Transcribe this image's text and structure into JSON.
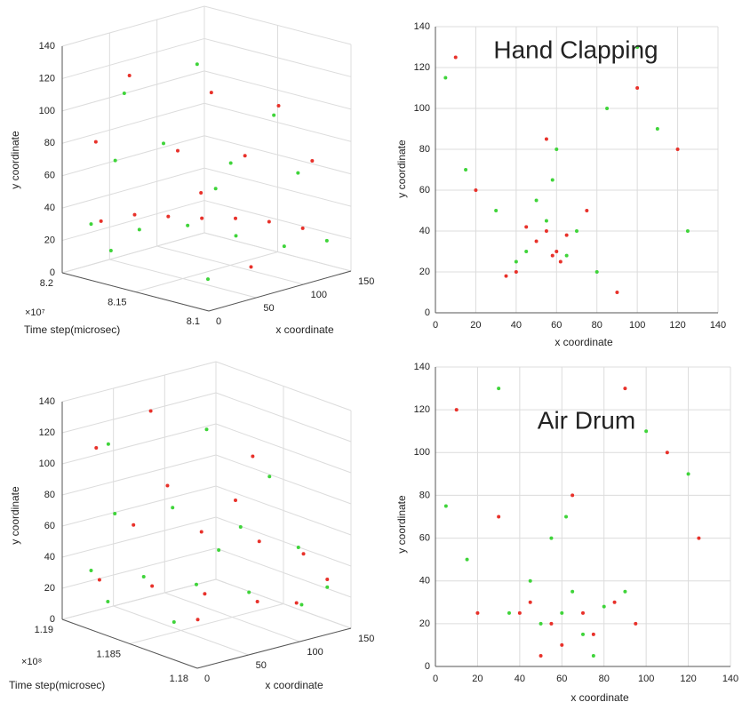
{
  "chart_data": [
    {
      "type": "scatter3d",
      "ylabel": "y coordinate",
      "xlabel": "x coordinate",
      "tlabel": "Time step(microsec)",
      "t_multiplier": "×10⁷",
      "tlim": [
        8.1,
        8.2
      ],
      "tticks": [
        8.1,
        8.15,
        8.2
      ],
      "xlim": [
        0,
        150
      ],
      "xticks": [
        0,
        50,
        100,
        150
      ],
      "ylim": [
        0,
        140
      ],
      "yticks": [
        0,
        20,
        40,
        60,
        80,
        100,
        120,
        140
      ],
      "grid": true,
      "series": [
        {
          "color": "#e8312a",
          "t": [
            8.18,
            8.17,
            8.16,
            8.15,
            8.14,
            8.13,
            8.12,
            8.19,
            8.16,
            8.14,
            8.12,
            8.18,
            8.15,
            8.13,
            8.11,
            8.17
          ],
          "x": [
            10,
            30,
            50,
            70,
            90,
            110,
            130,
            20,
            60,
            100,
            140,
            40,
            80,
            120,
            60,
            100
          ],
          "y": [
            35,
            38,
            36,
            34,
            33,
            30,
            25,
            80,
            75,
            70,
            65,
            120,
            110,
            100,
            15,
            40
          ]
        },
        {
          "color": "#3fd43a",
          "t": [
            8.19,
            8.17,
            8.15,
            8.13,
            8.11,
            8.18,
            8.16,
            8.14,
            8.12,
            8.17,
            8.15,
            8.13,
            8.19,
            8.11,
            8.16,
            8.12
          ],
          "x": [
            15,
            35,
            55,
            75,
            95,
            25,
            45,
            85,
            125,
            5,
            65,
            115,
            50,
            140,
            100,
            30
          ],
          "y": [
            30,
            28,
            32,
            27,
            22,
            70,
            82,
            68,
            60,
            20,
            130,
            95,
            105,
            18,
            45,
            10
          ]
        }
      ]
    },
    {
      "type": "scatter",
      "title": "Hand Clapping",
      "ylabel": "y coordinate",
      "xlabel": "x coordinate",
      "xlim": [
        0,
        140
      ],
      "xticks": [
        0,
        20,
        40,
        60,
        80,
        100,
        120,
        140
      ],
      "ylim": [
        0,
        140
      ],
      "yticks": [
        0,
        20,
        40,
        60,
        80,
        100,
        120,
        140
      ],
      "grid": true,
      "series": [
        {
          "color": "#e8312a",
          "x": [
            50,
            55,
            60,
            58,
            45,
            40,
            62,
            65,
            35,
            20,
            100,
            120,
            10,
            75,
            55,
            90
          ],
          "y": [
            35,
            40,
            30,
            28,
            42,
            20,
            25,
            38,
            18,
            60,
            110,
            80,
            125,
            50,
            85,
            10
          ]
        },
        {
          "color": "#3fd43a",
          "x": [
            45,
            55,
            65,
            60,
            70,
            50,
            40,
            30,
            80,
            110,
            15,
            100,
            58,
            125,
            5,
            85
          ],
          "y": [
            30,
            45,
            28,
            80,
            40,
            55,
            25,
            50,
            20,
            90,
            70,
            130,
            65,
            40,
            115,
            100
          ]
        }
      ]
    },
    {
      "type": "scatter3d",
      "ylabel": "y coordinate",
      "xlabel": "x coordinate",
      "tlabel": "Time step(microsec)",
      "t_multiplier": "×10⁸",
      "tlim": [
        1.18,
        1.19
      ],
      "tticks": [
        1.18,
        1.185,
        1.19
      ],
      "xlim": [
        0,
        150
      ],
      "xticks": [
        0,
        50,
        100,
        150
      ],
      "ylim": [
        0,
        140
      ],
      "yticks": [
        0,
        20,
        40,
        60,
        80,
        100,
        120,
        140
      ],
      "grid": true,
      "series": [
        {
          "color": "#e8312a",
          "t": [
            1.188,
            1.186,
            1.184,
            1.182,
            1.181,
            1.187,
            1.185,
            1.183,
            1.189,
            1.182,
            1.186,
            1.184,
            1.181,
            1.188,
            1.183,
            1.185
          ],
          "x": [
            10,
            35,
            60,
            85,
            110,
            30,
            70,
            100,
            20,
            130,
            50,
            90,
            140,
            60,
            40,
            120
          ],
          "y": [
            30,
            28,
            25,
            22,
            20,
            65,
            60,
            55,
            110,
            45,
            90,
            80,
            30,
            130,
            15,
            100
          ]
        },
        {
          "color": "#3fd43a",
          "t": [
            1.189,
            1.187,
            1.185,
            1.183,
            1.181,
            1.188,
            1.186,
            1.184,
            1.182,
            1.187,
            1.185,
            1.183,
            1.19,
            1.181,
            1.186,
            1.184
          ],
          "x": [
            15,
            40,
            65,
            90,
            115,
            25,
            55,
            95,
            125,
            5,
            75,
            110,
            45,
            140,
            100,
            30
          ],
          "y": [
            32,
            30,
            27,
            24,
            18,
            70,
            75,
            62,
            50,
            20,
            125,
            95,
            105,
            25,
            40,
            12
          ]
        }
      ]
    },
    {
      "type": "scatter",
      "title": "Air Drum",
      "ylabel": "y coordinate",
      "xlabel": "x coordinate",
      "xlim": [
        0,
        140
      ],
      "xticks": [
        0,
        20,
        40,
        60,
        80,
        100,
        120,
        140
      ],
      "ylim": [
        0,
        140
      ],
      "yticks": [
        0,
        20,
        40,
        60,
        80,
        100,
        120,
        140
      ],
      "grid": true,
      "series": [
        {
          "color": "#e8312a",
          "x": [
            45,
            55,
            70,
            85,
            95,
            40,
            60,
            75,
            65,
            20,
            110,
            125,
            10,
            90,
            50,
            30
          ],
          "y": [
            30,
            20,
            25,
            30,
            20,
            25,
            10,
            15,
            80,
            25,
            100,
            60,
            120,
            130,
            5,
            70
          ]
        },
        {
          "color": "#3fd43a",
          "x": [
            50,
            60,
            70,
            80,
            45,
            65,
            55,
            90,
            35,
            100,
            15,
            120,
            75,
            62,
            30,
            5
          ],
          "y": [
            20,
            25,
            15,
            28,
            40,
            35,
            60,
            35,
            25,
            110,
            50,
            90,
            5,
            70,
            130,
            75
          ]
        }
      ]
    }
  ]
}
